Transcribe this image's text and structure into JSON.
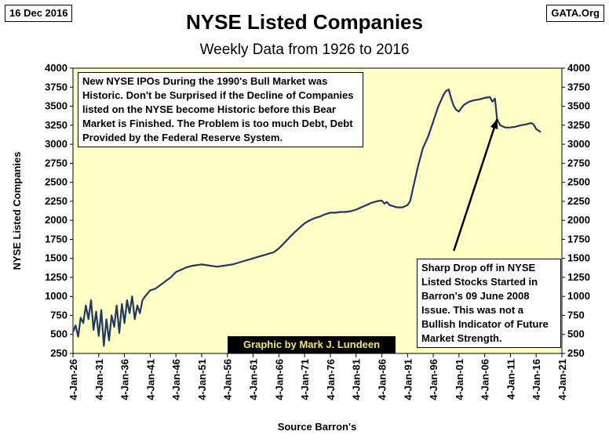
{
  "date_label": "16 Dec 2016",
  "source_label": "GATA.Org",
  "credit": "Graphic by Mark J. Lundeen",
  "annotation_top": "New NYSE IPOs During the 1990's Bull Market was Historic.  Don't be Surprised if the Decline of Companies listed on the NYSE become Historic before this Bear Market is Finished.  The Problem is too much Debt, Debt Provided by the Federal Reserve System.",
  "annotation_right": "Sharp Drop off in NYSE Listed Stocks Started in Barron's 09 June 2008 Issue.  This was not a Bullish Indicator of Future Market Strength.",
  "colors": {
    "plot_bg": "#ffffc6",
    "line": "#1f3864",
    "grid": "#d8d8d8",
    "arrow": "#000000",
    "credit_bg": "#000000",
    "credit_text": "#f2e86b"
  },
  "chart_data": {
    "type": "line",
    "title": "NYSE Listed Companies",
    "subtitle": "Weekly Data from 1926 to 2016",
    "xlabel": "Source Barron's",
    "ylabel": "NYSE Listed Companies",
    "xlim": [
      1926,
      2021
    ],
    "ylim": [
      250,
      4000
    ],
    "x_ticks": [
      "4-Jan-26",
      "4-Jan-31",
      "4-Jan-36",
      "4-Jan-41",
      "4-Jan-46",
      "4-Jan-51",
      "4-Jan-56",
      "4-Jan-61",
      "4-Jan-66",
      "4-Jan-71",
      "4-Jan-76",
      "4-Jan-81",
      "4-Jan-86",
      "4-Jan-91",
      "4-Jan-96",
      "4-Jan-01",
      "4-Jan-06",
      "4-Jan-11",
      "4-Jan-16",
      "4-Jan-21"
    ],
    "y_ticks": [
      "250",
      "500",
      "750",
      "1000",
      "1250",
      "1500",
      "1750",
      "2000",
      "2250",
      "2500",
      "2750",
      "3000",
      "3250",
      "3500",
      "3750",
      "4000"
    ],
    "grid": false,
    "arrow": {
      "from": [
        2000.0,
        1600
      ],
      "to": [
        2008.4,
        3330
      ]
    },
    "series": [
      {
        "x": [
          1926.0,
          1926.5,
          1927.0,
          1927.5,
          1928.0,
          1928.5,
          1929.0,
          1929.5,
          1930.0,
          1930.5,
          1931.0,
          1931.5,
          1932.0,
          1932.5,
          1933.0,
          1933.5,
          1934.0,
          1934.5,
          1935.0,
          1935.5,
          1936.0,
          1936.5,
          1937.0,
          1937.5,
          1938.0,
          1938.5,
          1939.0,
          1939.5,
          1940.0,
          1941.0,
          1942.0,
          1943.0,
          1944.0,
          1945.0,
          1946.0,
          1947.0,
          1948.0,
          1949.0,
          1950.0,
          1951.0,
          1952.0,
          1953.0,
          1954.0,
          1955.0,
          1956.0,
          1957.0,
          1958.0,
          1959.0,
          1960.0,
          1961.0,
          1962.0,
          1963.0,
          1964.0,
          1965.0,
          1966.0,
          1967.0,
          1968.0,
          1969.0,
          1970.0,
          1971.0,
          1972.0,
          1973.0,
          1974.0,
          1975.0,
          1976.0,
          1977.0,
          1978.0,
          1979.0,
          1980.0,
          1981.0,
          1982.0,
          1983.0,
          1984.0,
          1985.0,
          1986.0,
          1986.5,
          1987.0,
          1987.5,
          1988.0,
          1989.0,
          1990.0,
          1991.0,
          1991.5,
          1992.0,
          1993.0,
          1994.0,
          1995.0,
          1996.0,
          1997.0,
          1998.0,
          1998.5,
          1999.0,
          1999.5,
          2000.0,
          2000.5,
          2001.0,
          2001.5,
          2002.0,
          2003.0,
          2004.0,
          2005.0,
          2006.0,
          2007.0,
          2007.5,
          2008.0,
          2008.4,
          2008.7,
          2009.0,
          2010.0,
          2011.0,
          2012.0,
          2013.0,
          2014.0,
          2015.0,
          2015.5,
          2016.0,
          2016.9
        ],
        "values": [
          530,
          620,
          470,
          720,
          650,
          880,
          700,
          950,
          560,
          800,
          480,
          820,
          350,
          700,
          420,
          750,
          600,
          880,
          520,
          900,
          650,
          950,
          780,
          1000,
          700,
          880,
          780,
          950,
          1000,
          1080,
          1100,
          1150,
          1200,
          1250,
          1320,
          1350,
          1380,
          1400,
          1410,
          1420,
          1410,
          1400,
          1390,
          1400,
          1410,
          1420,
          1440,
          1460,
          1480,
          1500,
          1520,
          1540,
          1560,
          1580,
          1630,
          1700,
          1770,
          1840,
          1900,
          1960,
          2000,
          2030,
          2050,
          2080,
          2100,
          2100,
          2110,
          2110,
          2120,
          2140,
          2170,
          2200,
          2230,
          2250,
          2260,
          2220,
          2240,
          2200,
          2190,
          2170,
          2170,
          2200,
          2250,
          2400,
          2700,
          2950,
          3100,
          3300,
          3500,
          3650,
          3700,
          3720,
          3600,
          3500,
          3450,
          3430,
          3480,
          3520,
          3560,
          3580,
          3590,
          3610,
          3620,
          3560,
          3600,
          3330,
          3290,
          3250,
          3220,
          3220,
          3230,
          3250,
          3260,
          3280,
          3260,
          3200,
          3160
        ]
      }
    ]
  }
}
